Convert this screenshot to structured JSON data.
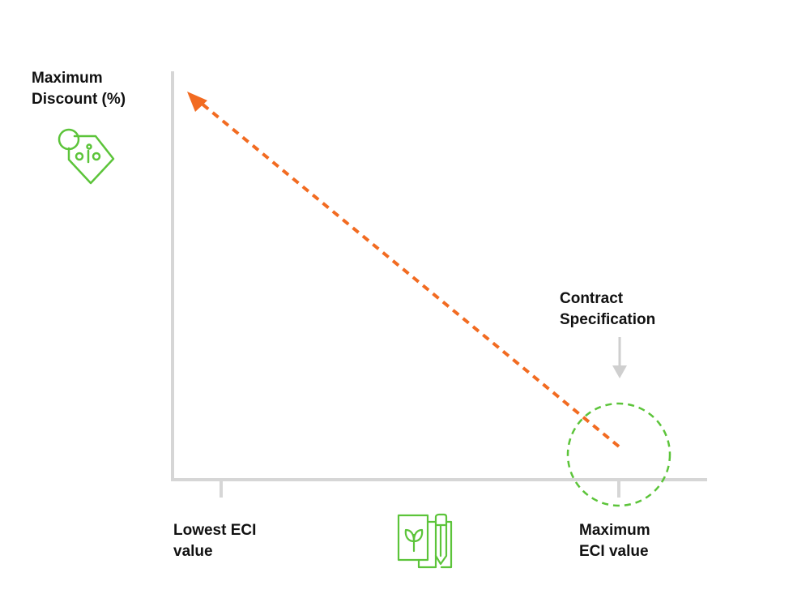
{
  "labels": {
    "y_axis_line1": "Maximum",
    "y_axis_line2": "Discount (%)",
    "contract_line1": "Contract",
    "contract_line2": "Specification",
    "x_low_line1": "Lowest ECI",
    "x_low_line2": "value",
    "x_max_line1": "Maximum",
    "x_max_line2": "ECI value"
  },
  "icons": {
    "y_axis": "discount-tag-icon",
    "x_axis": "document-plant-pencil-icon"
  },
  "colors": {
    "axis": "#d6d6d6",
    "arrow": "#f26b21",
    "accent_green": "#5cc43a",
    "text": "#111111"
  }
}
